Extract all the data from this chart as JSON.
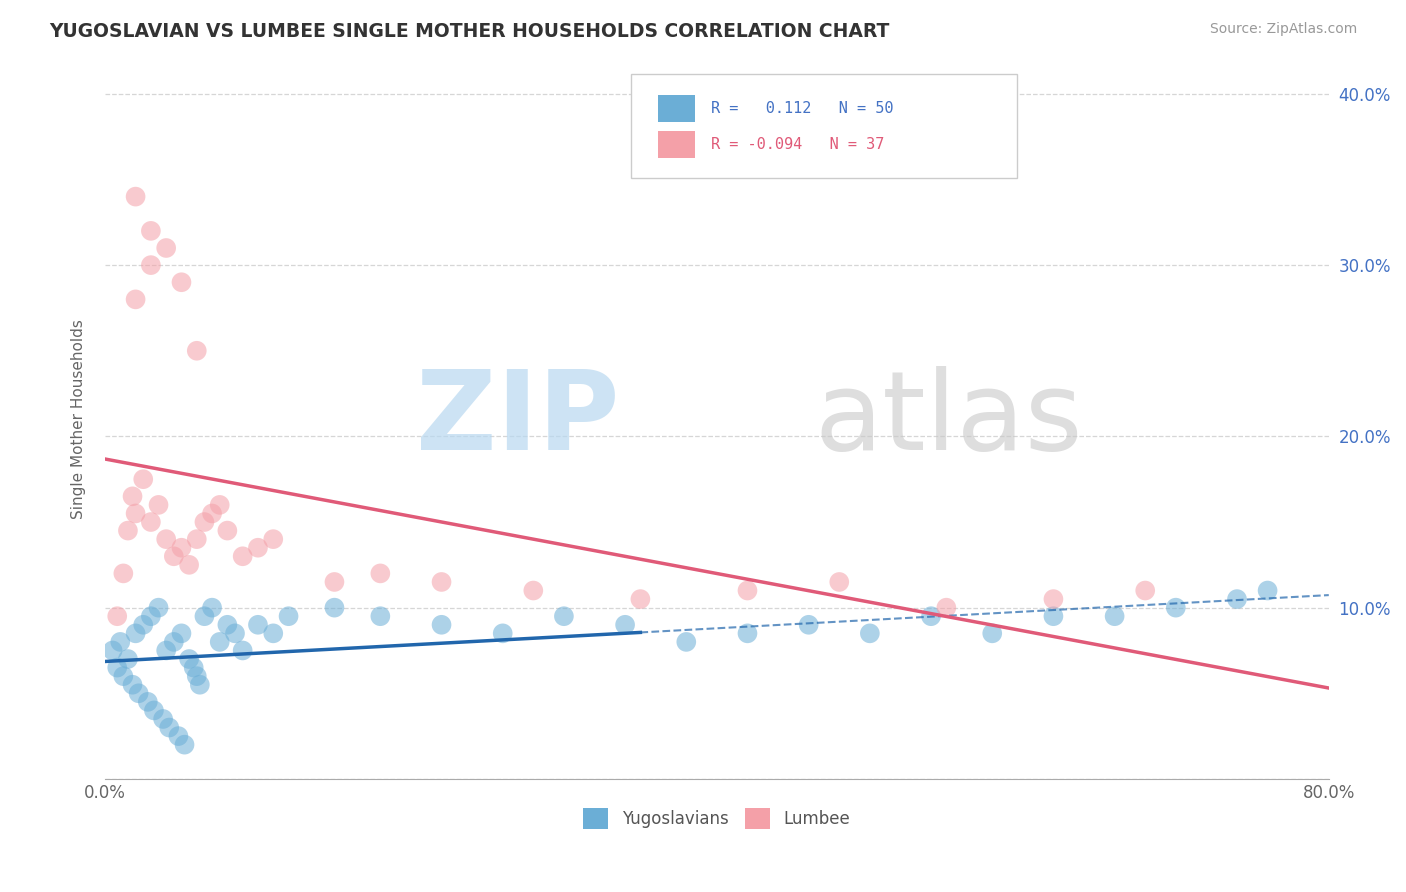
{
  "title": "YUGOSLAVIAN VS LUMBEE SINGLE MOTHER HOUSEHOLDS CORRELATION CHART",
  "source": "Source: ZipAtlas.com",
  "ylabel": "Single Mother Households",
  "legend_bottom": [
    "Yugoslavians",
    "Lumbee"
  ],
  "r_yugo": 0.112,
  "n_yugo": 50,
  "r_lumbee": -0.094,
  "n_lumbee": 37,
  "xlim": [
    0.0,
    0.8
  ],
  "ylim": [
    0.0,
    0.42
  ],
  "xtick_pos": [
    0.0,
    0.1,
    0.2,
    0.3,
    0.4,
    0.5,
    0.6,
    0.7,
    0.8
  ],
  "xtick_labels": [
    "0.0%",
    "",
    "",
    "",
    "",
    "",
    "",
    "",
    "80.0%"
  ],
  "ytick_pos": [
    0.0,
    0.1,
    0.2,
    0.3,
    0.4
  ],
  "ytick_labels_right": [
    "",
    "10.0%",
    "20.0%",
    "30.0%",
    "40.0%"
  ],
  "color_yugo": "#6baed6",
  "color_lumbee": "#f4a0a8",
  "color_yugo_line": "#2166ac",
  "color_lumbee_line": "#e05a78",
  "background": "#ffffff",
  "grid_color": "#cccccc",
  "yugo_scatter_x": [
    0.005,
    0.008,
    0.01,
    0.012,
    0.015,
    0.018,
    0.02,
    0.022,
    0.025,
    0.028,
    0.03,
    0.032,
    0.035,
    0.038,
    0.04,
    0.042,
    0.045,
    0.048,
    0.05,
    0.052,
    0.055,
    0.058,
    0.06,
    0.062,
    0.065,
    0.07,
    0.075,
    0.08,
    0.085,
    0.09,
    0.1,
    0.11,
    0.12,
    0.15,
    0.18,
    0.22,
    0.26,
    0.3,
    0.34,
    0.38,
    0.42,
    0.46,
    0.5,
    0.54,
    0.58,
    0.62,
    0.66,
    0.7,
    0.74,
    0.76
  ],
  "yugo_scatter_y": [
    0.075,
    0.065,
    0.08,
    0.06,
    0.07,
    0.055,
    0.085,
    0.05,
    0.09,
    0.045,
    0.095,
    0.04,
    0.1,
    0.035,
    0.075,
    0.03,
    0.08,
    0.025,
    0.085,
    0.02,
    0.07,
    0.065,
    0.06,
    0.055,
    0.095,
    0.1,
    0.08,
    0.09,
    0.085,
    0.075,
    0.09,
    0.085,
    0.095,
    0.1,
    0.095,
    0.09,
    0.085,
    0.095,
    0.09,
    0.08,
    0.085,
    0.09,
    0.085,
    0.095,
    0.085,
    0.095,
    0.095,
    0.1,
    0.105,
    0.11
  ],
  "lumbee_scatter_x": [
    0.008,
    0.012,
    0.015,
    0.018,
    0.02,
    0.025,
    0.03,
    0.035,
    0.04,
    0.045,
    0.05,
    0.055,
    0.06,
    0.065,
    0.07,
    0.075,
    0.08,
    0.09,
    0.1,
    0.11,
    0.15,
    0.18,
    0.22,
    0.28,
    0.35,
    0.42,
    0.48,
    0.55,
    0.62,
    0.68,
    0.02,
    0.03,
    0.04,
    0.05,
    0.06,
    0.02,
    0.03
  ],
  "lumbee_scatter_y": [
    0.095,
    0.12,
    0.145,
    0.165,
    0.155,
    0.175,
    0.15,
    0.16,
    0.14,
    0.13,
    0.135,
    0.125,
    0.14,
    0.15,
    0.155,
    0.16,
    0.145,
    0.13,
    0.135,
    0.14,
    0.115,
    0.12,
    0.115,
    0.11,
    0.105,
    0.11,
    0.115,
    0.1,
    0.105,
    0.11,
    0.28,
    0.3,
    0.31,
    0.29,
    0.25,
    0.34,
    0.32
  ]
}
